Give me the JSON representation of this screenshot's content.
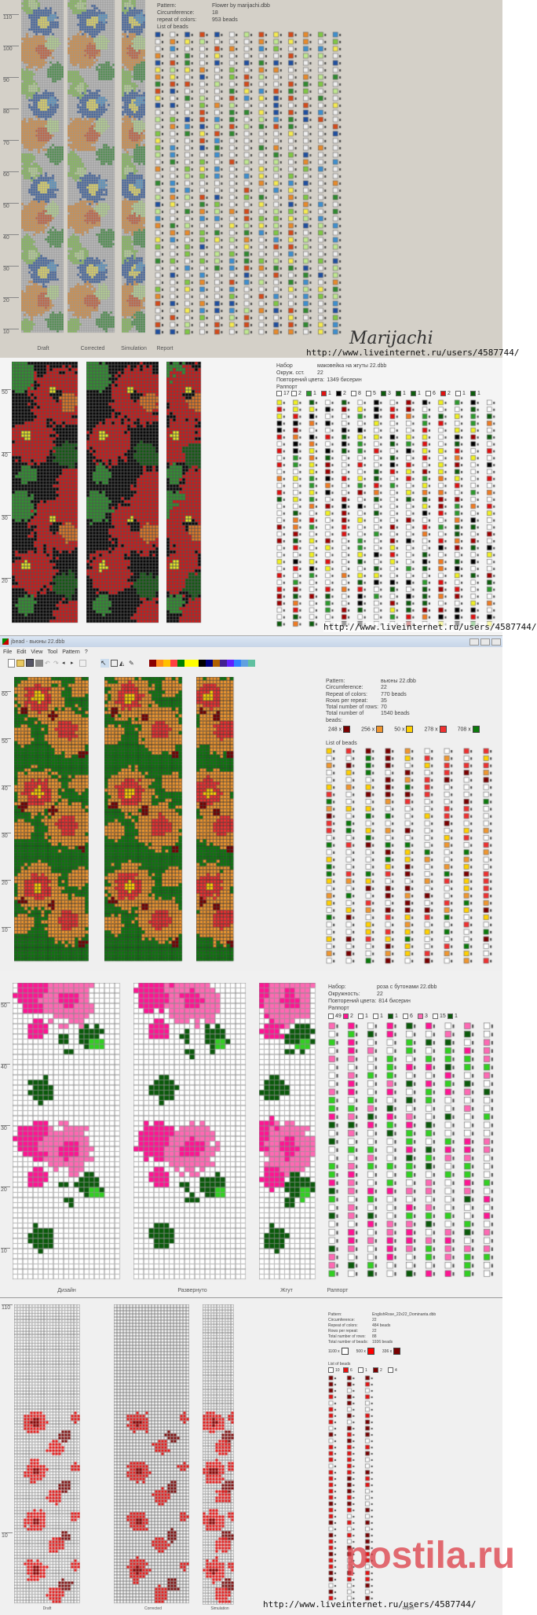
{
  "panel1": {
    "pattern_label": "Pattern:",
    "pattern": "Flower by marijachi.dbb",
    "circ_label": "Circumference:",
    "circ": "18",
    "repeat_label": "repeat of colors:",
    "repeat": "953 beads",
    "list_label": "List of beads",
    "ruler": [
      "110",
      "100",
      "90",
      "80",
      "70",
      "60",
      "50",
      "40",
      "30",
      "20",
      "10"
    ],
    "views": [
      "Draft",
      "Corrected",
      "Simulation",
      "Report"
    ],
    "signature": "Marijachi",
    "url": "http://www.liveinternet.ru/users/4587744/",
    "palette": [
      "#c8c8c8",
      "#1f4fa0",
      "#3d8fd0",
      "#7fc843",
      "#bfe890",
      "#2f8a2f",
      "#e88a2a",
      "#d44a1a",
      "#f5ea50"
    ],
    "bg": "#d4d0c8"
  },
  "panel2": {
    "pattern_label": "Набор",
    "pattern": "маковейка на жгуты 22.dbb",
    "circ_label": "Окруж. сст.",
    "circ": "22",
    "repeat_label": "Повторений цвета:",
    "repeat": "1349 бисерин",
    "list_label": "Раппорт",
    "first_row": [
      "17",
      "2",
      "1",
      "1",
      "2",
      "8",
      "5",
      "3",
      "1",
      "1",
      "6",
      "2",
      "1",
      "1"
    ],
    "ruler": [
      "50",
      "40",
      "30",
      "20"
    ],
    "url": "http://www.liveinternet.ru/users/4587744/",
    "palette": [
      "#000000",
      "#e01010",
      "#a00000",
      "#2a9a2a",
      "#0c5c0c",
      "#f07a20",
      "#f0f020",
      "#ffffff"
    ]
  },
  "panel3": {
    "window_title": "jbead - вьюны 22.dbb",
    "menu": [
      "File",
      "Edit",
      "View",
      "Tool",
      "Pattern",
      "?"
    ],
    "pattern_label": "Pattern:",
    "pattern": "вьюны 22.dbb",
    "circ_label": "Circumference:",
    "circ": "22",
    "repeat_label": "Repeat of colors:",
    "repeat": "770 beads",
    "rows_label": "Rows per repeat:",
    "rows": "35",
    "total_rows_label": "Total number of rows:",
    "total_rows": "70",
    "total_beads_label": "Total number of beads:",
    "total_beads": "1540 beads",
    "counts": [
      {
        "n": "248 x",
        "color": "#7a0000"
      },
      {
        "n": "256 x",
        "color": "#f0962e"
      },
      {
        "n": "50 x",
        "color": "#ffd000"
      },
      {
        "n": "278 x",
        "color": "#f03030"
      },
      {
        "n": "708 x",
        "color": "#0a7a0a"
      }
    ],
    "list_label": "List of beads",
    "ruler": [
      "60",
      "50",
      "40",
      "30",
      "20",
      "10"
    ],
    "palette": [
      "#0a7a0a",
      "#7a0000",
      "#f0962e",
      "#f03030",
      "#ffd000"
    ],
    "toolbar_colors": [
      "#8b0000",
      "#ff8c1a",
      "#ffc000",
      "#ff4040",
      "#008000",
      "#ffff00",
      "#ffff00",
      "#000000",
      "#000080",
      "#b06000",
      "#402090",
      "#6020ff",
      "#3080ff",
      "#60a0e0",
      "#60c0a0"
    ]
  },
  "panel4": {
    "pattern_label": "Набор:",
    "pattern": "роза с бутонами 22.dbb",
    "circ_label": "Окружность:",
    "circ": "22",
    "repeat_label": "Повторений цвета:",
    "repeat": "814 бисерин",
    "list_label": "Раппорт",
    "first_row": [
      "49",
      "2",
      "1",
      "1",
      "1",
      "6",
      "3",
      "15",
      "1"
    ],
    "views": [
      "Дизайн",
      "Развернуто",
      "Жгут",
      "Раппорт"
    ],
    "ruler": [
      "50",
      "40",
      "30",
      "20",
      "10"
    ],
    "palette": [
      "#ffffff",
      "#ff1493",
      "#ff69b4",
      "#0a5a0a",
      "#30d020",
      "#0000ff"
    ]
  },
  "panel5": {
    "pattern_label": "Pattern:",
    "pattern": "EnglishRose_22x22_Dominanta.dbb",
    "circ_label": "Circumference:",
    "circ": "22",
    "repeat_label": "Repeat of colors:",
    "repeat": "484 beads",
    "rows_label": "Rows per repeat:",
    "rows": "22",
    "total_rows_label": "Total number of rows:",
    "total_rows": "88",
    "total_beads_label": "Total number of beads:",
    "total_beads": "1936 beads",
    "counts": [
      {
        "n": "1100 x",
        "color": "#ffffff"
      },
      {
        "n": "500 x",
        "color": "#ff0000"
      },
      {
        "n": "336 x",
        "color": "#7a0000"
      }
    ],
    "list_label": "List of beads",
    "first_row": [
      "10",
      "6",
      "1",
      "2",
      "4"
    ],
    "views": [
      "Draft",
      "Corrected",
      "Simulation",
      "Report"
    ],
    "ruler": [
      "110",
      "10"
    ],
    "watermark": "postila.ru",
    "url": "http://www.liveinternet.ru/users/4587744/",
    "palette": [
      "#ffffff",
      "#e81010",
      "#7a0000"
    ]
  }
}
